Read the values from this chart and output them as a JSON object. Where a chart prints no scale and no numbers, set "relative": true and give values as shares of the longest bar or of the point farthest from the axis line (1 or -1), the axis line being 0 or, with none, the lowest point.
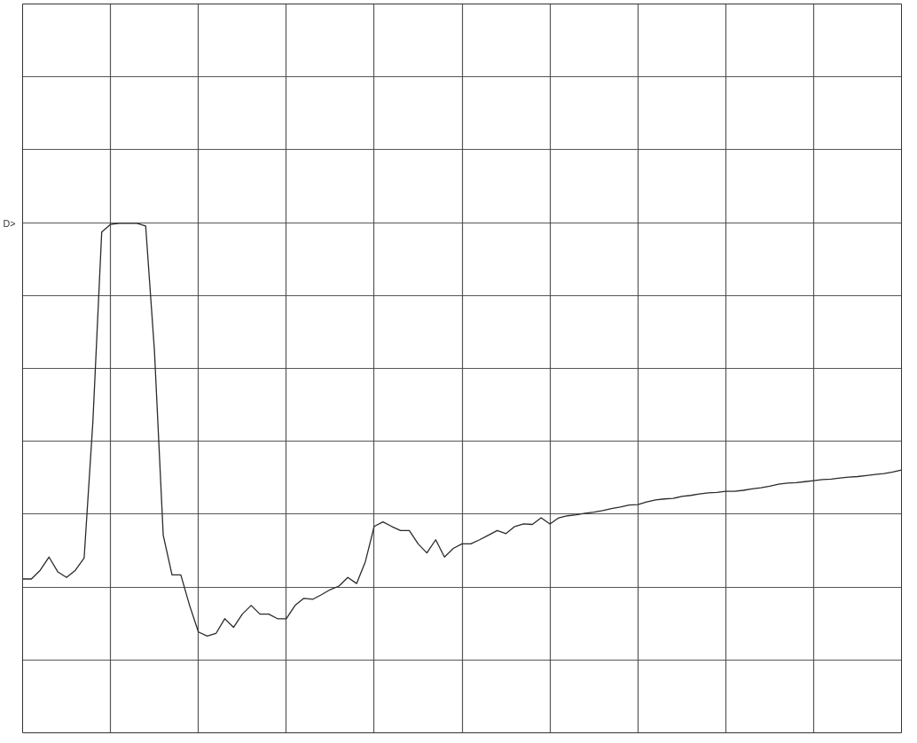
{
  "chart_data": {
    "type": "line",
    "relative": true,
    "grid": true,
    "tick_labels": false,
    "marker": "none",
    "line_style": "solid",
    "annotations": [
      "D>"
    ],
    "categories": [
      null,
      null,
      null,
      null,
      null,
      null,
      null,
      null,
      null,
      null,
      null,
      null,
      null,
      null,
      null,
      null,
      null,
      null,
      null,
      null,
      null,
      null,
      null,
      null,
      null,
      null,
      null,
      null,
      null,
      null,
      null,
      null,
      null,
      null,
      null,
      null,
      null,
      null,
      null,
      null,
      null,
      null,
      null,
      null,
      null,
      null,
      null,
      null,
      null,
      null,
      null,
      null,
      null,
      null,
      null,
      null,
      null,
      null,
      null,
      null,
      null,
      null,
      null,
      null,
      null,
      null,
      null,
      null,
      null,
      null,
      null,
      null,
      null,
      null,
      null,
      null,
      null,
      null,
      null,
      null,
      null,
      null,
      null,
      null,
      null,
      null,
      null,
      null,
      null,
      null,
      null,
      null,
      null,
      null,
      null,
      null,
      null,
      null,
      null,
      null,
      null
    ],
    "series": [
      {
        "color": "#2a2a2a",
        "values": [
          0.302,
          0.302,
          0.319,
          0.345,
          0.316,
          0.305,
          0.319,
          0.343,
          0.612,
          0.983,
          0.998,
          1,
          1,
          1,
          0.995,
          0.75,
          0.388,
          0.31,
          0.31,
          0.25,
          0.198,
          0.19,
          0.195,
          0.224,
          0.207,
          0.233,
          0.25,
          0.233,
          0.233,
          0.224,
          0.224,
          0.25,
          0.264,
          0.262,
          0.271,
          0.281,
          0.288,
          0.305,
          0.293,
          0.336,
          0.405,
          0.414,
          0.405,
          0.397,
          0.397,
          0.371,
          0.353,
          0.379,
          0.345,
          0.362,
          0.371,
          0.371,
          0.379,
          0.388,
          0.397,
          0.391,
          0.405,
          0.41,
          0.409,
          0.422,
          0.41,
          0.422,
          0.426,
          0.428,
          0.431,
          0.433,
          0.436,
          0.44,
          0.443,
          0.447,
          0.448,
          0.453,
          0.457,
          0.459,
          0.46,
          0.464,
          0.466,
          0.469,
          0.471,
          0.472,
          0.474,
          0.474,
          0.476,
          0.479,
          0.481,
          0.484,
          0.488,
          0.49,
          0.491,
          0.493,
          0.495,
          0.497,
          0.498,
          0.5,
          0.502,
          0.503,
          0.505,
          0.507,
          0.509,
          0.512,
          0.516
        ]
      }
    ]
  }
}
